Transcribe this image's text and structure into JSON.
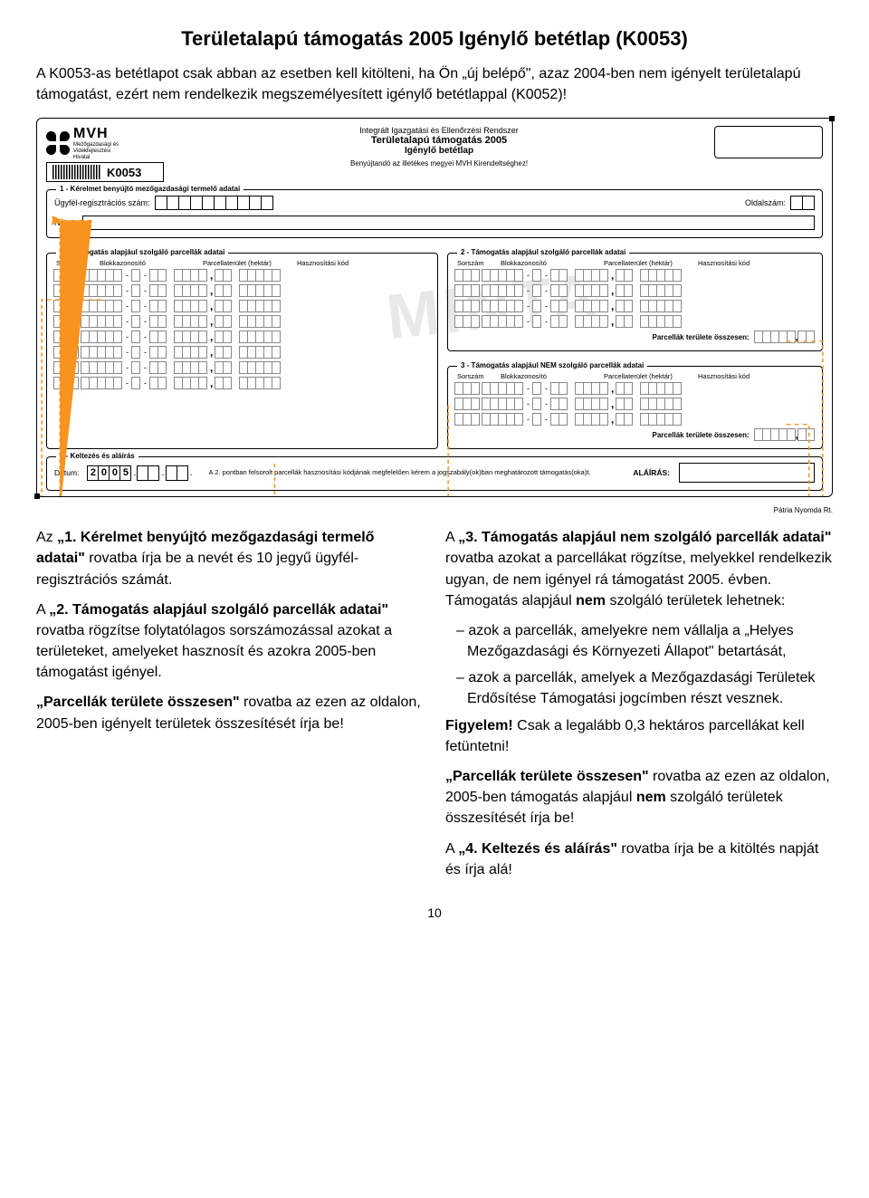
{
  "title": "Területalapú támogatás 2005 Igénylő betétlap (K0053)",
  "intro": "A K0053-as betétlapot csak abban az esetben kell kitölteni, ha Ön „új belépő\", azaz 2004-ben nem igényelt területalapú támogatást, ezért nem rendelkezik megszemélyesített igénylő betétlappal (K0052)!",
  "logo": {
    "name": "MVH",
    "sub1": "Mezőgazdasági és",
    "sub2": "Vidékfejlesztési",
    "sub3": "Hivatal"
  },
  "code": "K0053",
  "hdr": {
    "l1": "Integrált Igazgatási és Ellenőrzési Rendszer",
    "l2": "Területalapú támogatás 2005",
    "l3": "Igénylő betétlap",
    "l4": "Benyújtandó az illetékes megyei MVH Kirendeltséghez!"
  },
  "sec1": {
    "legend": "1 - Kérelmet benyújtó mezőgazdasági termelő adatai",
    "reg": "Ügyfél-regisztrációs szám:",
    "page": "Oldalszám:",
    "name": "Név:"
  },
  "sec2": {
    "legend": "2 - Támogatás alapjául szolgáló parcellák adatai",
    "h1": "Sorszám",
    "h2": "Blokkazonosító",
    "h3": "Parcellaterület (hektár)",
    "h4": "Hasznosítási kód",
    "total": "Parcellák területe összesen:"
  },
  "sec3": {
    "legend": "3 - Támogatás alapjául NEM szolgáló parcellák adatai",
    "total": "Parcellák területe összesen:"
  },
  "sec4": {
    "legend": "4 - Keltezés és aláírás",
    "date": "Dátum:",
    "year": [
      "2",
      "0",
      "0",
      "5"
    ],
    "decl": "A 2. pontban felsorolt parcellák hasznosítási kódjának megfelelően kérem a jogszabály(ok)ban meghatározott támogatás(oka)t.",
    "sign": "ALÁÍRÁS:"
  },
  "printer": "Pátria Nyomda Rt.",
  "watermark": "MINTA",
  "instr": {
    "left": {
      "p1a": "Az ",
      "p1b": "„1. Kérelmet benyújtó mezőgazdasági termelő adatai\"",
      "p1c": " rovatba írja be a nevét és 10 jegyű ügyfél-regisztrációs számát.",
      "p2a": "A ",
      "p2b": "„2. Támogatás alapjául szolgáló parcellák adatai\"",
      "p2c": " rovatba rögzítse folytatólagos sorszámozással azokat a területeket, amelyeket hasznosít és azokra 2005-ben támogatást igényel.",
      "p3a": "„Parcellák területe összesen\"",
      "p3b": " rovatba az ezen az oldalon, 2005-ben igényelt területek összesítését írja be!"
    },
    "right": {
      "p1a": "A ",
      "p1b": "„3. Támogatás alapjául nem szolgáló parcellák adatai\"",
      "p1c": " rovatba azokat a parcellákat rögzítse, melyekkel rendelkezik ugyan, de nem igényel rá támogatást 2005. évben. Támogatás alapjául ",
      "p1d": "nem",
      "p1e": " szolgáló területek lehetnek:",
      "li1": "azok a parcellák, amelyekre nem vállalja a „Helyes Mezőgazdasági és Környezeti Állapot\" betartását,",
      "li2": "azok a parcellák, amelyek a Mezőgazdasági Területek Erdősítése Támogatási jogcímben részt vesznek.",
      "p2a": "Figyelem!",
      "p2b": " Csak a legalább 0,3 hektáros parcellákat kell fetüntetni!",
      "p3a": "„Parcellák területe összesen\"",
      "p3b": " rovatba az ezen az oldalon, 2005-ben támogatás alapjául ",
      "p3c": "nem",
      "p3d": " szolgáló területek összesítését írja be!",
      "p4a": "A ",
      "p4b": "„4. Keltezés és aláírás\"",
      "p4c": " rovatba írja be a kitöltés napját és írja alá!"
    }
  },
  "pagenum": "10",
  "colors": {
    "callout": "#f7931e"
  }
}
